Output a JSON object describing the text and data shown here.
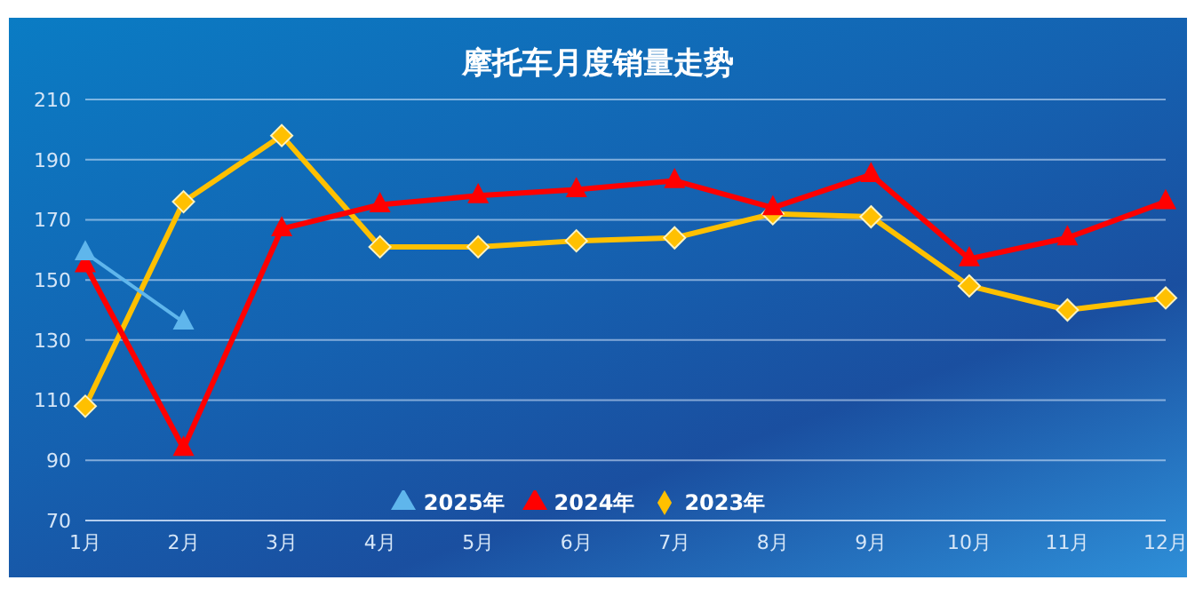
{
  "chart_data": {
    "type": "line",
    "title": "摩托车月度销量走势",
    "categories": [
      "1月",
      "2月",
      "3月",
      "4月",
      "5月",
      "6月",
      "7月",
      "8月",
      "9月",
      "10月",
      "11月",
      "12月"
    ],
    "series": [
      {
        "name": "2025年",
        "color": "#5fb6ec",
        "marker": "triangle",
        "values": [
          159,
          136,
          null,
          null,
          null,
          null,
          null,
          null,
          null,
          null,
          null,
          null
        ]
      },
      {
        "name": "2024年",
        "color": "#ff0000",
        "marker": "triangle",
        "values": [
          155,
          94,
          167,
          175,
          178,
          180,
          183,
          174,
          185,
          157,
          164,
          176
        ]
      },
      {
        "name": "2023年",
        "color": "#ffc000",
        "marker": "diamond",
        "values": [
          108,
          176,
          198,
          161,
          161,
          163,
          164,
          172,
          171,
          148,
          140,
          144
        ]
      }
    ],
    "ylim": [
      70,
      210
    ],
    "yticks": [
      70,
      90,
      110,
      130,
      150,
      170,
      190,
      210
    ],
    "grid": "y",
    "legend": "bottom",
    "line_style": "solid"
  }
}
